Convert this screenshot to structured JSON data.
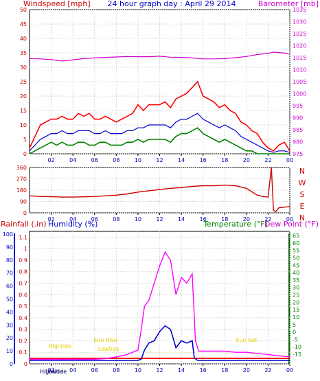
{
  "chart_data": [
    {
      "type": "line",
      "title": "24 hour graph day : April 29 2014",
      "ylabel_left": "Windspeed [mph]",
      "ylabel_right": "Barometer [mb]",
      "ylim_left": [
        0,
        50
      ],
      "ylim_right": [
        975,
        1035
      ],
      "yticks_left": [
        0,
        5,
        10,
        15,
        20,
        25,
        30,
        35,
        40,
        45,
        50
      ],
      "yticks_right": [
        975,
        980,
        985,
        990,
        995,
        1000,
        1005,
        1010,
        1015,
        1020,
        1025,
        1030,
        1035
      ],
      "xticks": [
        "02",
        "04",
        "06",
        "08",
        "10",
        "12",
        "14",
        "16",
        "18",
        "20",
        "22",
        "00"
      ],
      "grid": true,
      "colors": {
        "windspeed_gust": "#ff0000",
        "windspeed_avg": "#0000cc",
        "windspeed_low": "#008000",
        "barometer": "#cc00cc"
      },
      "series": {
        "barometer": {
          "x": [
            0,
            1,
            2,
            2.5,
            3,
            3.5,
            4,
            5,
            6,
            7,
            8,
            9,
            10,
            11,
            12,
            13,
            14,
            15,
            16,
            17,
            18,
            19,
            20,
            21,
            22,
            22.5,
            23,
            23.5,
            24
          ],
          "values": [
            1014.6,
            1014.5,
            1014.2,
            1013.9,
            1013.6,
            1013.8,
            1014.1,
            1014.6,
            1014.9,
            1015.1,
            1015.3,
            1015.5,
            1015.4,
            1015.4,
            1015.6,
            1015.2,
            1015.1,
            1014.9,
            1014.5,
            1014.5,
            1014.6,
            1015.0,
            1015.5,
            1016.3,
            1016.8,
            1017.3,
            1017.1,
            1016.9,
            1016.5
          ]
        },
        "windspeed_gust": {
          "x": [
            0,
            0.5,
            1,
            1.5,
            2,
            2.5,
            3,
            3.5,
            4,
            4.5,
            5,
            5.5,
            6,
            6.5,
            7,
            7.5,
            8,
            8.5,
            9,
            9.5,
            10,
            10.5,
            11,
            11.5,
            12,
            12.5,
            13,
            13.5,
            14,
            14.5,
            15,
            15.5,
            16,
            16.5,
            17,
            17.5,
            18,
            18.5,
            19,
            19.5,
            20,
            20.5,
            21,
            21.5,
            22,
            22.5,
            23,
            23.5,
            24
          ],
          "values": [
            2,
            6,
            10,
            11,
            12,
            12,
            13,
            12,
            12,
            14,
            13,
            14,
            12,
            12,
            13,
            12,
            11,
            12,
            13,
            14,
            17,
            15,
            17,
            17,
            17,
            18,
            16,
            19,
            20,
            21,
            23,
            25,
            20,
            19,
            18,
            16,
            17,
            15,
            14,
            11,
            10,
            8,
            7,
            4,
            2,
            1,
            3,
            4,
            1
          ]
        },
        "windspeed_avg": {
          "x": [
            0,
            0.5,
            1,
            1.5,
            2,
            2.5,
            3,
            3.5,
            4,
            4.5,
            5,
            5.5,
            6,
            6.5,
            7,
            7.5,
            8,
            8.5,
            9,
            9.5,
            10,
            10.5,
            11,
            11.5,
            12,
            12.5,
            13,
            13.5,
            14,
            14.5,
            15,
            15.5,
            16,
            16.5,
            17,
            17.5,
            18,
            18.5,
            19,
            19.5,
            20,
            20.5,
            21,
            21.5,
            22,
            22.5,
            23,
            23.5,
            24
          ],
          "values": [
            1,
            3,
            5,
            6,
            7,
            7,
            8,
            7,
            7,
            8,
            8,
            8,
            7,
            7,
            8,
            7,
            7,
            7,
            8,
            8,
            9,
            9,
            10,
            10,
            10,
            10,
            9,
            11,
            12,
            12,
            13,
            14,
            12,
            11,
            10,
            9,
            10,
            9,
            8,
            6,
            5,
            4,
            3,
            2,
            1,
            0.5,
            1,
            1,
            0.5
          ]
        },
        "windspeed_low": {
          "x": [
            0,
            0.5,
            1,
            1.5,
            2,
            2.5,
            3,
            3.5,
            4,
            4.5,
            5,
            5.5,
            6,
            6.5,
            7,
            7.5,
            8,
            8.5,
            9,
            9.5,
            10,
            10.5,
            11,
            11.5,
            12,
            12.5,
            13,
            13.5,
            14,
            14.5,
            15,
            15.5,
            16,
            16.5,
            17,
            17.5,
            18,
            18.5,
            19,
            19.5,
            20,
            20.5,
            21,
            21.5,
            22,
            22.5,
            23,
            23.5,
            24
          ],
          "values": [
            0,
            1,
            2,
            3,
            4,
            3,
            4,
            3,
            3,
            4,
            4,
            3,
            3,
            4,
            4,
            3,
            3,
            3,
            4,
            4,
            5,
            4,
            5,
            5,
            5,
            5,
            4,
            6,
            7,
            7,
            8,
            9,
            7,
            6,
            5,
            4,
            5,
            4,
            3,
            2,
            1,
            1,
            0,
            0,
            0,
            0,
            0,
            0,
            0
          ]
        }
      }
    },
    {
      "type": "line",
      "ylabel_left": "",
      "yticks_left": [
        0,
        90,
        180,
        270,
        360
      ],
      "yticks_right_labels": [
        "N",
        "W",
        "S",
        "E",
        "N"
      ],
      "ylim_left": [
        0,
        360
      ],
      "xticks": [
        "02",
        "04",
        "06",
        "08",
        "10",
        "12",
        "14",
        "16",
        "18",
        "20",
        "22",
        "00"
      ],
      "grid": true,
      "colors": {
        "wind_direction": "#cc0000"
      },
      "series": {
        "wind_direction": {
          "x": [
            0,
            1,
            2,
            3,
            4,
            5,
            6,
            7,
            8,
            9,
            10,
            11,
            12,
            13,
            14,
            15,
            16,
            17,
            18,
            19,
            20,
            21,
            21.5,
            22,
            22.3,
            22.5,
            22.7,
            23,
            23.5,
            24
          ],
          "values": [
            135,
            130,
            128,
            125,
            125,
            127,
            130,
            135,
            140,
            150,
            165,
            175,
            185,
            195,
            200,
            210,
            215,
            215,
            220,
            215,
            195,
            140,
            130,
            125,
            360,
            20,
            10,
            40,
            45,
            50
          ]
        }
      }
    },
    {
      "type": "line",
      "ylabel_left": "Rainfall (.in)",
      "ylabel_left2": "Humidity (%)",
      "ylabel_right": "Temperature (°F)",
      "ylabel_right2": "Dew Point (°F)",
      "yticks_humidity": [
        0,
        10,
        20,
        30,
        40,
        50,
        60,
        70,
        80,
        90,
        100
      ],
      "yticks_rain": [
        0,
        0.1,
        0.2,
        0.3,
        0.4,
        0.5,
        0.6,
        0.7,
        0.8,
        0.9,
        1,
        1.1
      ],
      "yticks_temp": [
        -15,
        -10,
        -5,
        0,
        5,
        10,
        15,
        20,
        25,
        30,
        35,
        40,
        45,
        50,
        55,
        60,
        65
      ],
      "ylim_rain": [
        0,
        1.15
      ],
      "xticks": [
        "02",
        "04",
        "06",
        "08",
        "10",
        "12",
        "14",
        "16",
        "18",
        "20",
        "22",
        "00"
      ],
      "grid": true,
      "annotations": [
        {
          "text": "Hightide",
          "x": 2.8
        },
        {
          "text": "Sun Rise",
          "x": 7.0
        },
        {
          "text": "Lowtide",
          "x": 7.3
        },
        {
          "text": "Sun Set",
          "x": 20.0
        }
      ],
      "bottom_labels": [
        "Hightide",
        "Lowtide"
      ],
      "colors": {
        "rainfall": "#ff00ff",
        "humidity": "#0000cc",
        "baseline": "#ff0000",
        "annotation": "#e0d000"
      },
      "series": {
        "rainfall": {
          "x": [
            0,
            1,
            2,
            3,
            4,
            5,
            6,
            7,
            8,
            8.5,
            9,
            9.5,
            10,
            10.3,
            10.6,
            11,
            11.5,
            12,
            12.5,
            13,
            13.5,
            14,
            14.5,
            15,
            15.3,
            15.6,
            16,
            17,
            18,
            19,
            20,
            21,
            22,
            23,
            24
          ],
          "values": [
            0.04,
            0.04,
            0.04,
            0.04,
            0.04,
            0.04,
            0.04,
            0.045,
            0.06,
            0.07,
            0.08,
            0.1,
            0.12,
            0.3,
            0.5,
            0.55,
            0.7,
            0.85,
            0.97,
            0.9,
            0.6,
            0.75,
            0.7,
            0.78,
            0.2,
            0.11,
            0.11,
            0.11,
            0.11,
            0.1,
            0.1,
            0.09,
            0.08,
            0.07,
            0.06
          ]
        },
        "humidity": {
          "x": [
            0,
            8,
            10,
            10.3,
            10.6,
            11,
            11.5,
            12,
            12.5,
            13,
            13.5,
            14,
            14.5,
            15,
            15.2,
            15.5,
            24
          ],
          "values": [
            0.03,
            0.03,
            0.03,
            0.04,
            0.12,
            0.18,
            0.2,
            0.28,
            0.33,
            0.3,
            0.14,
            0.2,
            0.18,
            0.2,
            0.05,
            0.03,
            0.03
          ]
        }
      }
    }
  ]
}
